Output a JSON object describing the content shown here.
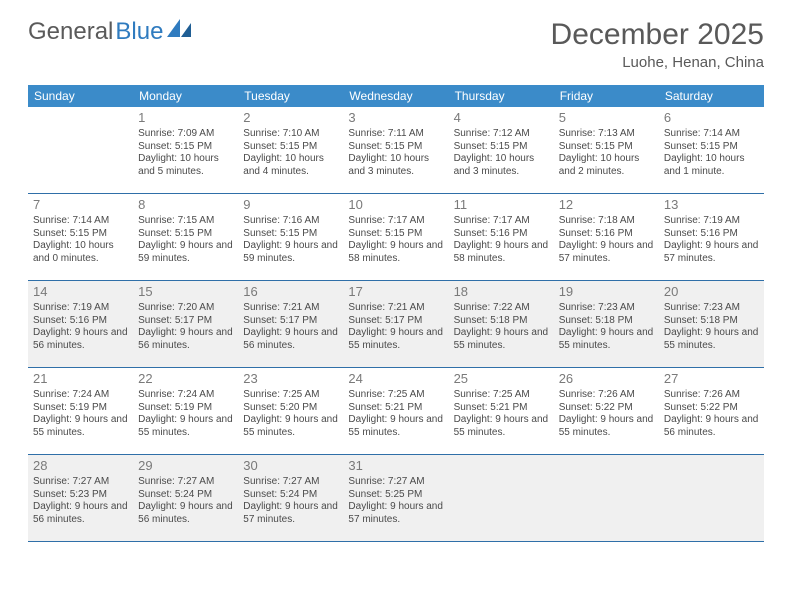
{
  "logo": {
    "text1": "General",
    "text2": "Blue"
  },
  "title": "December 2025",
  "subtitle": "Luohe, Henan, China",
  "colors": {
    "header_bg": "#3b8bc9",
    "header_text": "#ffffff",
    "border": "#2f6fa8",
    "shaded_bg": "#f0f0f0",
    "cell_bg": "#ffffff",
    "daynum": "#7a7a7a",
    "body_text": "#4a4a4a",
    "title_text": "#595959",
    "logo_gray": "#5a5a5a",
    "logo_blue": "#2f7bbf"
  },
  "day_names": [
    "Sunday",
    "Monday",
    "Tuesday",
    "Wednesday",
    "Thursday",
    "Friday",
    "Saturday"
  ],
  "weeks": [
    {
      "shaded": false,
      "cells": [
        {
          "n": "",
          "sr": "",
          "ss": "",
          "dl": ""
        },
        {
          "n": "1",
          "sr": "7:09 AM",
          "ss": "5:15 PM",
          "dl": "10 hours and 5 minutes."
        },
        {
          "n": "2",
          "sr": "7:10 AM",
          "ss": "5:15 PM",
          "dl": "10 hours and 4 minutes."
        },
        {
          "n": "3",
          "sr": "7:11 AM",
          "ss": "5:15 PM",
          "dl": "10 hours and 3 minutes."
        },
        {
          "n": "4",
          "sr": "7:12 AM",
          "ss": "5:15 PM",
          "dl": "10 hours and 3 minutes."
        },
        {
          "n": "5",
          "sr": "7:13 AM",
          "ss": "5:15 PM",
          "dl": "10 hours and 2 minutes."
        },
        {
          "n": "6",
          "sr": "7:14 AM",
          "ss": "5:15 PM",
          "dl": "10 hours and 1 minute."
        }
      ]
    },
    {
      "shaded": false,
      "cells": [
        {
          "n": "7",
          "sr": "7:14 AM",
          "ss": "5:15 PM",
          "dl": "10 hours and 0 minutes."
        },
        {
          "n": "8",
          "sr": "7:15 AM",
          "ss": "5:15 PM",
          "dl": "9 hours and 59 minutes."
        },
        {
          "n": "9",
          "sr": "7:16 AM",
          "ss": "5:15 PM",
          "dl": "9 hours and 59 minutes."
        },
        {
          "n": "10",
          "sr": "7:17 AM",
          "ss": "5:15 PM",
          "dl": "9 hours and 58 minutes."
        },
        {
          "n": "11",
          "sr": "7:17 AM",
          "ss": "5:16 PM",
          "dl": "9 hours and 58 minutes."
        },
        {
          "n": "12",
          "sr": "7:18 AM",
          "ss": "5:16 PM",
          "dl": "9 hours and 57 minutes."
        },
        {
          "n": "13",
          "sr": "7:19 AM",
          "ss": "5:16 PM",
          "dl": "9 hours and 57 minutes."
        }
      ]
    },
    {
      "shaded": true,
      "cells": [
        {
          "n": "14",
          "sr": "7:19 AM",
          "ss": "5:16 PM",
          "dl": "9 hours and 56 minutes."
        },
        {
          "n": "15",
          "sr": "7:20 AM",
          "ss": "5:17 PM",
          "dl": "9 hours and 56 minutes."
        },
        {
          "n": "16",
          "sr": "7:21 AM",
          "ss": "5:17 PM",
          "dl": "9 hours and 56 minutes."
        },
        {
          "n": "17",
          "sr": "7:21 AM",
          "ss": "5:17 PM",
          "dl": "9 hours and 55 minutes."
        },
        {
          "n": "18",
          "sr": "7:22 AM",
          "ss": "5:18 PM",
          "dl": "9 hours and 55 minutes."
        },
        {
          "n": "19",
          "sr": "7:23 AM",
          "ss": "5:18 PM",
          "dl": "9 hours and 55 minutes."
        },
        {
          "n": "20",
          "sr": "7:23 AM",
          "ss": "5:18 PM",
          "dl": "9 hours and 55 minutes."
        }
      ]
    },
    {
      "shaded": false,
      "cells": [
        {
          "n": "21",
          "sr": "7:24 AM",
          "ss": "5:19 PM",
          "dl": "9 hours and 55 minutes."
        },
        {
          "n": "22",
          "sr": "7:24 AM",
          "ss": "5:19 PM",
          "dl": "9 hours and 55 minutes."
        },
        {
          "n": "23",
          "sr": "7:25 AM",
          "ss": "5:20 PM",
          "dl": "9 hours and 55 minutes."
        },
        {
          "n": "24",
          "sr": "7:25 AM",
          "ss": "5:21 PM",
          "dl": "9 hours and 55 minutes."
        },
        {
          "n": "25",
          "sr": "7:25 AM",
          "ss": "5:21 PM",
          "dl": "9 hours and 55 minutes."
        },
        {
          "n": "26",
          "sr": "7:26 AM",
          "ss": "5:22 PM",
          "dl": "9 hours and 55 minutes."
        },
        {
          "n": "27",
          "sr": "7:26 AM",
          "ss": "5:22 PM",
          "dl": "9 hours and 56 minutes."
        }
      ]
    },
    {
      "shaded": true,
      "cells": [
        {
          "n": "28",
          "sr": "7:27 AM",
          "ss": "5:23 PM",
          "dl": "9 hours and 56 minutes."
        },
        {
          "n": "29",
          "sr": "7:27 AM",
          "ss": "5:24 PM",
          "dl": "9 hours and 56 minutes."
        },
        {
          "n": "30",
          "sr": "7:27 AM",
          "ss": "5:24 PM",
          "dl": "9 hours and 57 minutes."
        },
        {
          "n": "31",
          "sr": "7:27 AM",
          "ss": "5:25 PM",
          "dl": "9 hours and 57 minutes."
        },
        {
          "n": "",
          "sr": "",
          "ss": "",
          "dl": ""
        },
        {
          "n": "",
          "sr": "",
          "ss": "",
          "dl": ""
        },
        {
          "n": "",
          "sr": "",
          "ss": "",
          "dl": ""
        }
      ]
    }
  ],
  "labels": {
    "sunrise": "Sunrise: ",
    "sunset": "Sunset: ",
    "daylight": "Daylight: "
  }
}
